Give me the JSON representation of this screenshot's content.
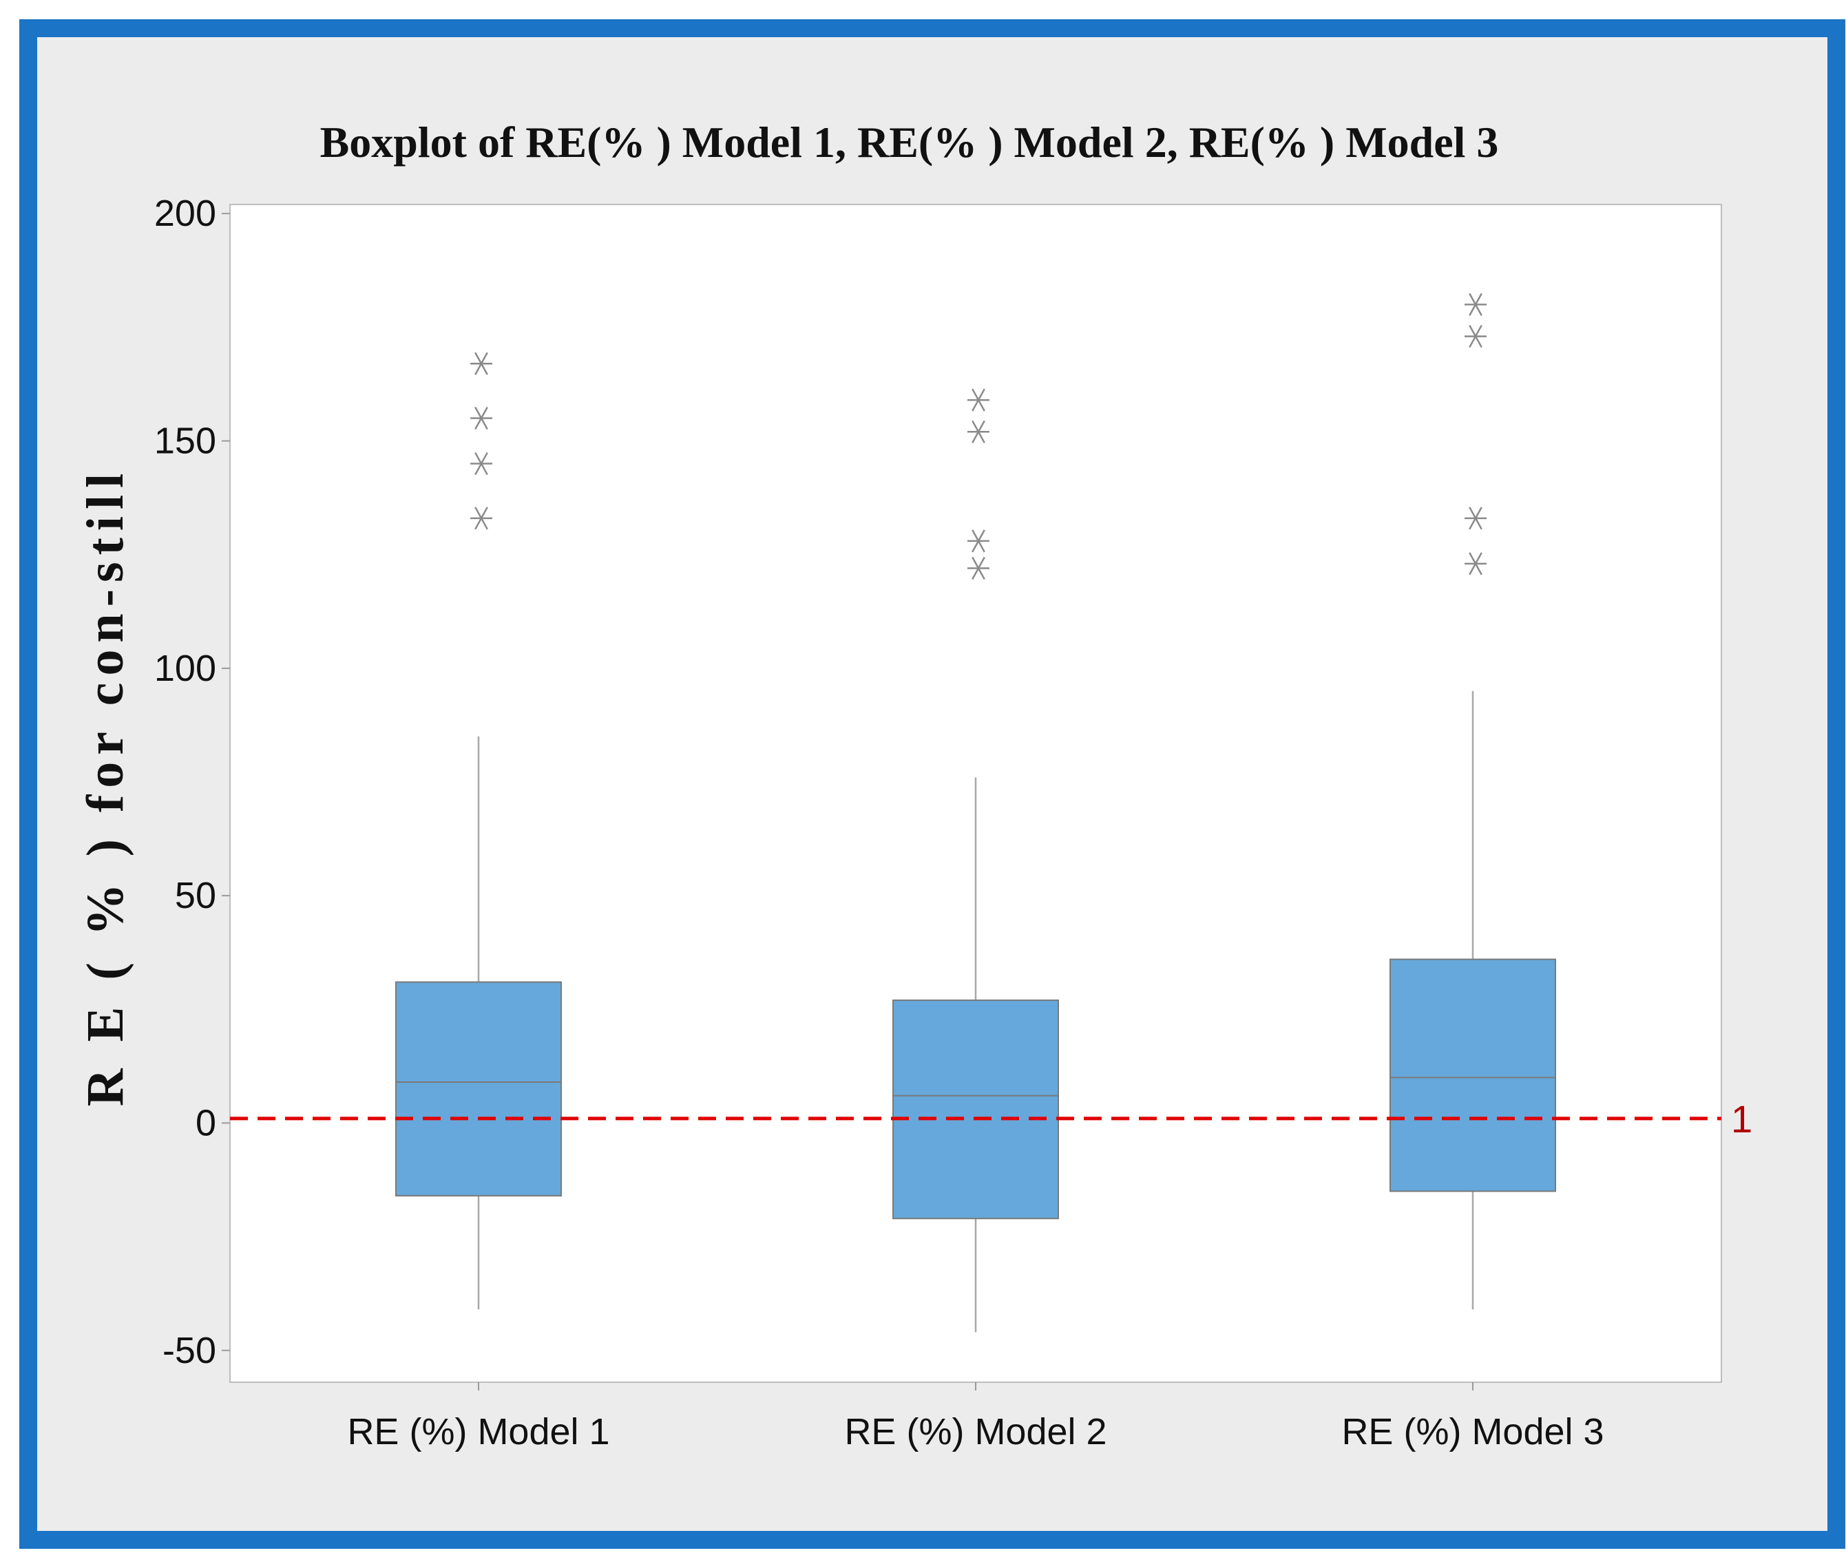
{
  "chart_data": {
    "type": "boxplot",
    "title": "Boxplot of RE(% ) Model 1, RE(% ) Model 2, RE(% ) Model 3",
    "ylabel": "R E ( % ) for con-still",
    "xlabel": "",
    "ylim": [
      -57,
      202
    ],
    "yticks": [
      -50,
      0,
      50,
      100,
      150,
      200
    ],
    "ytick_labels": [
      "-50",
      "0",
      "50",
      "100",
      "150",
      "200"
    ],
    "categories": [
      "RE (%) Model 1",
      "RE (%) Model 2",
      "RE (%) Model 3"
    ],
    "boxes": [
      {
        "name": "RE (%) Model 1",
        "whisker_low": -41,
        "q1": -16,
        "median": 9,
        "q3": 31,
        "whisker_high": 85,
        "outliers": [
          133,
          145,
          155,
          167
        ]
      },
      {
        "name": "RE (%) Model 2",
        "whisker_low": -46,
        "q1": -21,
        "median": 6,
        "q3": 27,
        "whisker_high": 76,
        "outliers": [
          122,
          128,
          152,
          159
        ]
      },
      {
        "name": "RE (%) Model 3",
        "whisker_low": -41,
        "q1": -15,
        "median": 10,
        "q3": 36,
        "whisker_high": 95,
        "outliers": [
          123,
          133,
          173,
          180
        ]
      }
    ],
    "reference_line": {
      "value": 1,
      "label": "1",
      "style": "dashed",
      "color": "#e00000"
    },
    "grid": false,
    "colors": {
      "box_fill": "#66a8db",
      "box_edge": "#7a7a7a",
      "whisker": "#a8a8a8",
      "outlier": "#8a8a8a",
      "ref_label": "#b00000",
      "frame": "#1b74c6",
      "background": "#ececec"
    }
  }
}
